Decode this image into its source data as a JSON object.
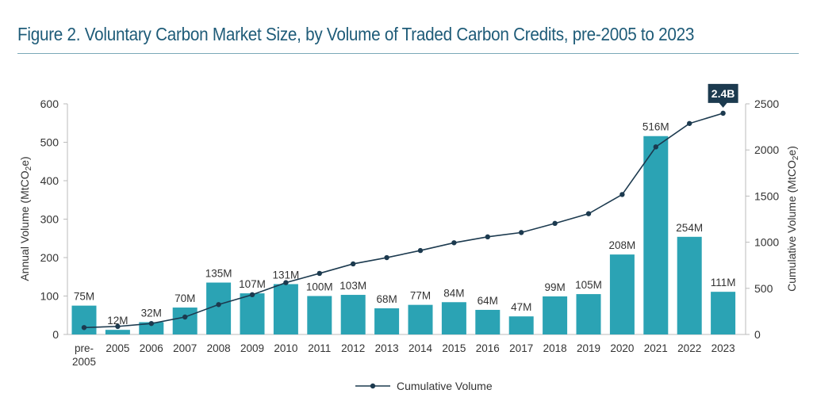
{
  "title": "Figure 2. Voluntary Carbon Market Size, by Volume of Traded Carbon Credits, pre-2005 to 2023",
  "chart_data": {
    "type": "bar+line",
    "categories": [
      "pre-2005",
      "2005",
      "2006",
      "2007",
      "2008",
      "2009",
      "2010",
      "2011",
      "2012",
      "2013",
      "2014",
      "2015",
      "2016",
      "2017",
      "2018",
      "2019",
      "2020",
      "2021",
      "2022",
      "2023"
    ],
    "series": [
      {
        "axis": "left",
        "type": "bar",
        "values": [
          75,
          12,
          32,
          70,
          135,
          107,
          131,
          100,
          103,
          68,
          77,
          84,
          64,
          47,
          99,
          105,
          208,
          516,
          254,
          111
        ],
        "labels": [
          "75M",
          "12M",
          "32M",
          "70M",
          "135M",
          "107M",
          "131M",
          "100M",
          "103M",
          "68M",
          "77M",
          "84M",
          "64M",
          "47M",
          "99M",
          "105M",
          "208M",
          "516M",
          "254M",
          "111M"
        ]
      },
      {
        "axis": "right",
        "type": "line",
        "name": "Cumulative Volume",
        "values": [
          75,
          87,
          119,
          189,
          324,
          431,
          562,
          662,
          765,
          833,
          910,
          994,
          1058,
          1105,
          1204,
          1309,
          1517,
          2033,
          2287,
          2398
        ]
      }
    ],
    "callout": "2.4B",
    "ylabel_left": "Annual Volume (MtCO2e)",
    "ylabel_right": "Cumulative Volume (MtCO2e)",
    "ylim_left": [
      0,
      600
    ],
    "yticks_left": [
      0,
      100,
      200,
      300,
      400,
      500,
      600
    ],
    "ylim_right": [
      0,
      2500
    ],
    "yticks_right": [
      0,
      500,
      1000,
      1500,
      2000,
      2500
    ],
    "legend_position": "bottom",
    "grid": false,
    "colors": {
      "bar": "#2ba3b4",
      "line": "#1c3a4f",
      "title": "#1e5b78"
    }
  }
}
